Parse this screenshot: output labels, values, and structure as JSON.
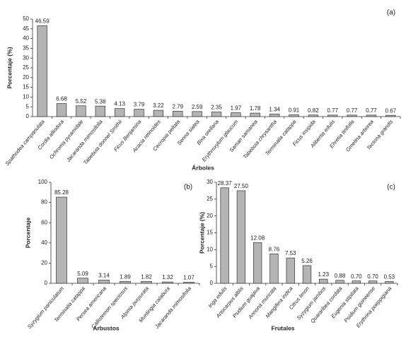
{
  "chart_data": [
    {
      "type": "bar",
      "annotation": "(a)",
      "y_label": "Porcentaje (%)",
      "x_label": "Árboles",
      "categories": [
        "Spathodea campanulata",
        "Cordia alliodora",
        "Ochroma pyramidale",
        "Jacaranda mimosifolia",
        "Tabebuia donnel Smithii",
        "Ficus Benjamina",
        "Acacia retinoides",
        "Cecropia peltata",
        "Senna siatea",
        "Bixa orellana",
        "Erythroxylum glaucum",
        "Saman samanea",
        "Tabebuia chrysantha",
        "Terminalia catappa",
        "Ficus insipida",
        "Alibertia edulis",
        "Ehretia tinifolia",
        "Gmelina arborea",
        "Tectona grandis"
      ],
      "values": [
        46.59,
        6.68,
        5.52,
        5.38,
        4.13,
        3.79,
        3.22,
        2.79,
        2.59,
        2.35,
        1.97,
        1.78,
        1.34,
        0.91,
        0.82,
        0.77,
        0.77,
        0.77,
        0.67
      ],
      "value_labels": [
        "46.59",
        "6.68",
        "5.52",
        "5.38",
        "4.13",
        "3.79",
        "3.22",
        "2.79",
        "2.59",
        "2.35",
        "1.97",
        "1.78",
        "1.34",
        "0.91",
        "0.82",
        "0.77",
        "0.77",
        "0.77",
        "0.67"
      ],
      "color": "#b4b4b4",
      "ylim": [
        0,
        50
      ],
      "yticks": [
        0,
        5,
        10,
        15,
        20,
        25,
        30,
        35,
        40,
        45,
        50
      ]
    },
    {
      "type": "bar",
      "annotation": "(b)",
      "y_label": "Porcentaje",
      "x_label": "Arbustos",
      "categories": [
        "Syzygium paniculatum",
        "Terminalia catappa",
        "Persea americana",
        "Callistemon speciosus",
        "Alpinia purpurata",
        "Muntingia calabura",
        "Jacaranda mimosifolia"
      ],
      "values": [
        85.28,
        5.09,
        3.14,
        1.89,
        1.82,
        1.32,
        1.07
      ],
      "value_labels": [
        "85.28",
        "5.09",
        "3.14",
        "1.89",
        "1.82",
        "1.32",
        "1.07"
      ],
      "color": "#b4b4b4",
      "ylim": [
        0,
        100
      ],
      "yticks": [
        0,
        20,
        40,
        60,
        80,
        100
      ]
    },
    {
      "type": "bar",
      "annotation": "(c)",
      "y_label": "Porcentaje (%)",
      "x_label": "Frutales",
      "categories": [
        "Inga edulis",
        "Artocarpus altilis",
        "Psidium guajava",
        "Annona muricata",
        "Mangifera indica",
        "Citrus limon",
        "Syzygium jambos",
        "Quararibea cordata",
        "Eugenia stipitata",
        "Psidium guineense",
        "Erythrina poeppigiana"
      ],
      "values": [
        28.37,
        27.5,
        12.08,
        8.76,
        7.53,
        5.26,
        1.23,
        0.88,
        0.7,
        0.7,
        0.53
      ],
      "value_labels": [
        "28.37",
        "27.50",
        "12.08",
        "8.76",
        "7.53",
        "5.26",
        "1.23",
        "0.88",
        "0.70",
        "0.70",
        "0.53"
      ],
      "color": "#b4b4b4",
      "ylim": [
        0,
        30
      ],
      "yticks": [
        0,
        5,
        10,
        15,
        20,
        25,
        30
      ]
    }
  ]
}
